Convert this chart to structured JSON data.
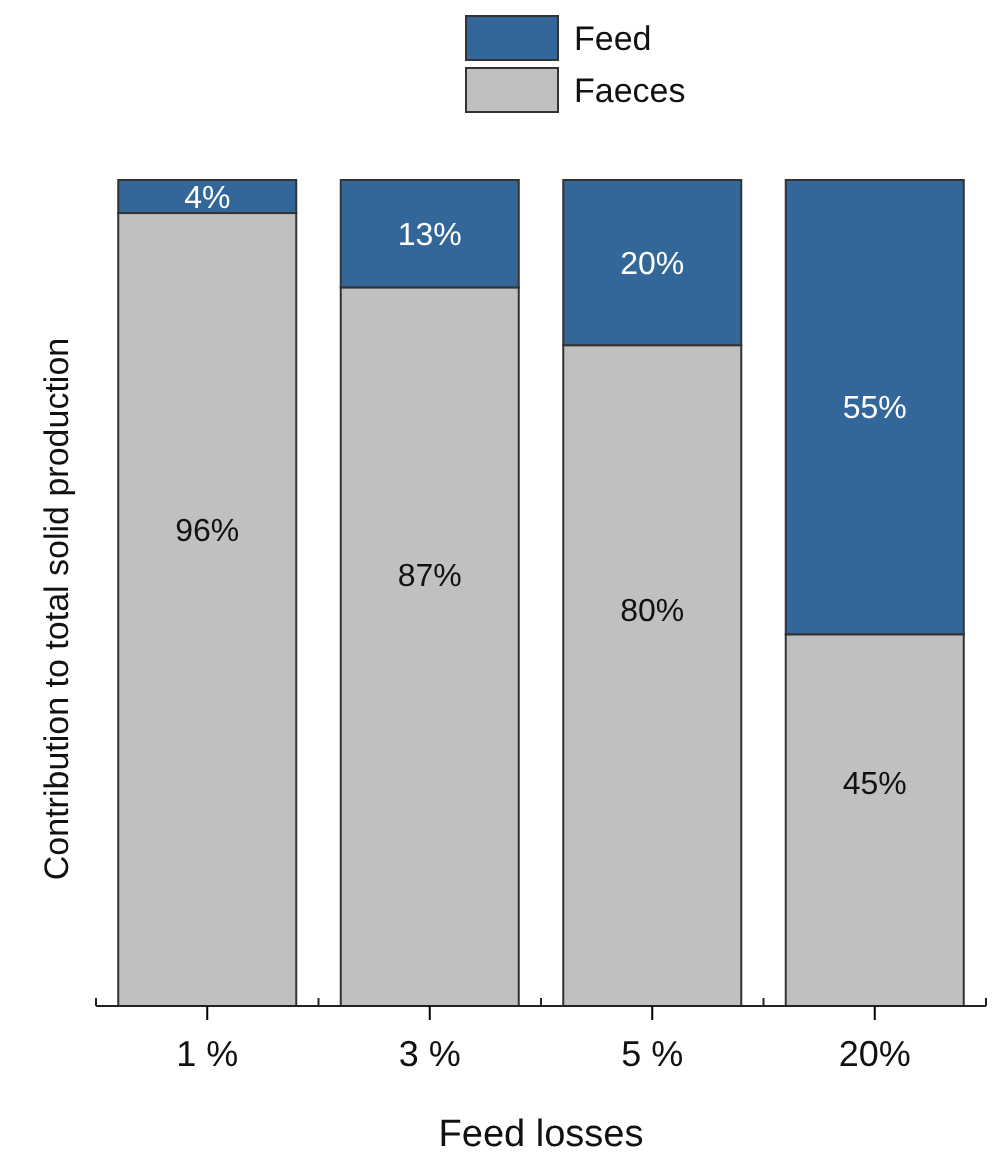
{
  "chart_data": {
    "type": "bar",
    "stacked": true,
    "xlabel": "Feed losses",
    "ylabel": "Contribution to total solid production",
    "categories": [
      "1 %",
      "3 %",
      "5 %",
      "20%"
    ],
    "series": [
      {
        "name": "Faeces",
        "color": "#c0c0c0",
        "values": [
          96,
          87,
          80,
          45
        ],
        "value_labels": [
          "96%",
          "87%",
          "80%",
          "45%"
        ]
      },
      {
        "name": "Feed",
        "color": "#336699",
        "values": [
          4,
          13,
          20,
          55
        ],
        "value_labels": [
          "4%",
          "13%",
          "20%",
          "55%"
        ]
      }
    ],
    "ylim": [
      0,
      100
    ],
    "tick_labels": "x",
    "legend": "top"
  }
}
